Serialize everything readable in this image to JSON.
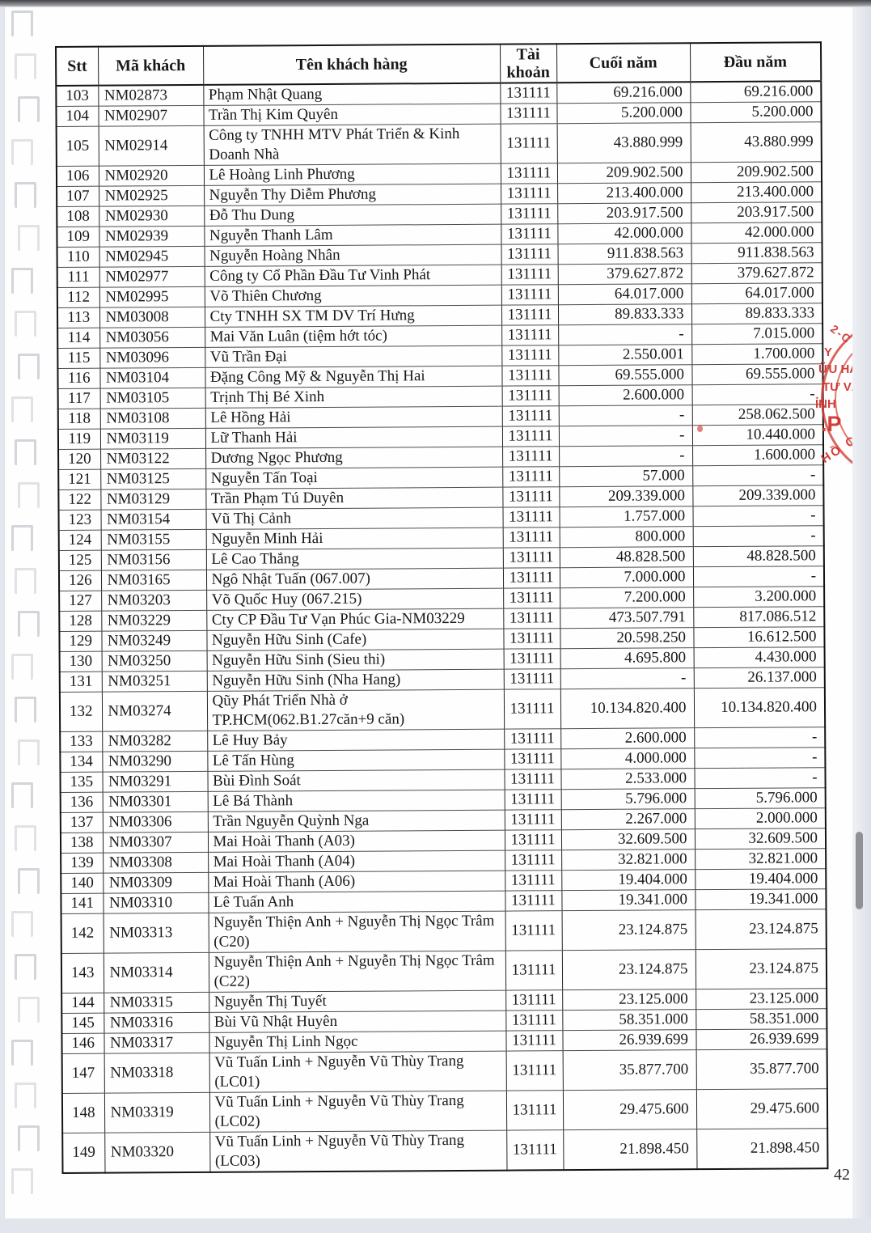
{
  "document": {
    "page_number": "42",
    "table": {
      "columns": [
        {
          "key": "stt",
          "label": "Stt"
        },
        {
          "key": "ma_khach",
          "label": "Mã khách"
        },
        {
          "key": "ten_khach_hang",
          "label": "Tên khách hàng"
        },
        {
          "key": "tai_khoan",
          "label": "Tài khoản"
        },
        {
          "key": "cuoi_nam",
          "label": "Cuối năm"
        },
        {
          "key": "dau_nam",
          "label": "Đầu năm"
        }
      ],
      "rows": [
        [
          "103",
          "NM02873",
          "Phạm Nhật Quang",
          "131111",
          "69.216.000",
          "69.216.000"
        ],
        [
          "104",
          "NM02907",
          "Trần Thị Kim Quyên",
          "131111",
          "5.200.000",
          "5.200.000"
        ],
        [
          "105",
          "NM02914",
          "Công ty TNHH MTV Phát Triển & Kinh Doanh Nhà",
          "131111",
          "43.880.999",
          "43.880.999"
        ],
        [
          "106",
          "NM02920",
          "Lê Hoàng Linh Phương",
          "131111",
          "209.902.500",
          "209.902.500"
        ],
        [
          "107",
          "NM02925",
          "Nguyễn Thy Diễm Phương",
          "131111",
          "213.400.000",
          "213.400.000"
        ],
        [
          "108",
          "NM02930",
          "Đỗ Thu Dung",
          "131111",
          "203.917.500",
          "203.917.500"
        ],
        [
          "109",
          "NM02939",
          "Nguyễn Thanh Lâm",
          "131111",
          "42.000.000",
          "42.000.000"
        ],
        [
          "110",
          "NM02945",
          "Nguyễn Hoàng Nhân",
          "131111",
          "911.838.563",
          "911.838.563"
        ],
        [
          "111",
          "NM02977",
          "Công ty Cổ Phần Đầu Tư Vinh Phát",
          "131111",
          "379.627.872",
          "379.627.872"
        ],
        [
          "112",
          "NM02995",
          "Võ Thiên Chương",
          "131111",
          "64.017.000",
          "64.017.000"
        ],
        [
          "113",
          "NM03008",
          "Cty TNHH SX TM DV Trí Hưng",
          "131111",
          "89.833.333",
          "89.833.333"
        ],
        [
          "114",
          "NM03056",
          "Mai Văn Luân (tiệm hớt tóc)",
          "131111",
          "-",
          "7.015.000"
        ],
        [
          "115",
          "NM03096",
          "Vũ Trần Đại",
          "131111",
          "2.550.001",
          "1.700.000"
        ],
        [
          "116",
          "NM03104",
          "Đặng Công Mỹ & Nguyễn Thị Hai",
          "131111",
          "69.555.000",
          "69.555.000"
        ],
        [
          "117",
          "NM03105",
          "Trịnh Thị Bé Xinh",
          "131111",
          "2.600.000",
          "-"
        ],
        [
          "118",
          "NM03108",
          "Lê Hồng Hải",
          "131111",
          "-",
          "258.062.500"
        ],
        [
          "119",
          "NM03119",
          "Lữ Thanh Hải",
          "131111",
          "-",
          "10.440.000"
        ],
        [
          "120",
          "NM03122",
          "Dương Ngọc Phương",
          "131111",
          "-",
          "1.600.000"
        ],
        [
          "121",
          "NM03125",
          "Nguyễn Tấn Toại",
          "131111",
          "57.000",
          "-"
        ],
        [
          "122",
          "NM03129",
          "Trần Phạm Tú Duyên",
          "131111",
          "209.339.000",
          "209.339.000"
        ],
        [
          "123",
          "NM03154",
          "Vũ Thị Cảnh",
          "131111",
          "1.757.000",
          "-"
        ],
        [
          "124",
          "NM03155",
          "Nguyễn Minh Hải",
          "131111",
          "800.000",
          "-"
        ],
        [
          "125",
          "NM03156",
          "Lê Cao Thắng",
          "131111",
          "48.828.500",
          "48.828.500"
        ],
        [
          "126",
          "NM03165",
          "Ngô Nhật Tuấn (067.007)",
          "131111",
          "7.000.000",
          "-"
        ],
        [
          "127",
          "NM03203",
          "Võ Quốc Huy (067.215)",
          "131111",
          "7.200.000",
          "3.200.000"
        ],
        [
          "128",
          "NM03229",
          "Cty CP Đầu Tư Vạn Phúc Gia-NM03229",
          "131111",
          "473.507.791",
          "817.086.512"
        ],
        [
          "129",
          "NM03249",
          "Nguyễn Hữu Sinh (Cafe)",
          "131111",
          "20.598.250",
          "16.612.500"
        ],
        [
          "130",
          "NM03250",
          "Nguyễn Hữu Sinh (Sieu thi)",
          "131111",
          "4.695.800",
          "4.430.000"
        ],
        [
          "131",
          "NM03251",
          "Nguyễn Hữu Sinh (Nha Hang)",
          "131111",
          "-",
          "26.137.000"
        ],
        [
          "132",
          "NM03274",
          "Qũy Phát Triển Nhà ở TP.HCM(062.B1.27căn+9 căn)",
          "131111",
          "10.134.820.400",
          "10.134.820.400"
        ],
        [
          "133",
          "NM03282",
          "Lê Huy Bảy",
          "131111",
          "2.600.000",
          "-"
        ],
        [
          "134",
          "NM03290",
          "Lê Tấn Hùng",
          "131111",
          "4.000.000",
          "-"
        ],
        [
          "135",
          "NM03291",
          "Bùi Đình Soát",
          "131111",
          "2.533.000",
          "-"
        ],
        [
          "136",
          "NM03301",
          "Lê Bá Thành",
          "131111",
          "5.796.000",
          "5.796.000"
        ],
        [
          "137",
          "NM03306",
          "Trần Nguyễn Quỳnh Nga",
          "131111",
          "2.267.000",
          "2.000.000"
        ],
        [
          "138",
          "NM03307",
          "Mai Hoài Thanh (A03)",
          "131111",
          "32.609.500",
          "32.609.500"
        ],
        [
          "139",
          "NM03308",
          "Mai Hoài Thanh (A04)",
          "131111",
          "32.821.000",
          "32.821.000"
        ],
        [
          "140",
          "NM03309",
          "Mai Hoài Thanh (A06)",
          "131111",
          "19.404.000",
          "19.404.000"
        ],
        [
          "141",
          "NM03310",
          "Lê Tuấn Anh",
          "131111",
          "19.341.000",
          "19.341.000"
        ],
        [
          "142",
          "NM03313",
          "Nguyễn Thiện Anh + Nguyễn Thị Ngọc Trâm (C20)",
          "131111",
          "23.124.875",
          "23.124.875"
        ],
        [
          "143",
          "NM03314",
          "Nguyễn Thiện Anh + Nguyễn Thị Ngọc Trâm (C22)",
          "131111",
          "23.124.875",
          "23.124.875"
        ],
        [
          "144",
          "NM03315",
          "Nguyễn Thị Tuyết",
          "131111",
          "23.125.000",
          "23.125.000"
        ],
        [
          "145",
          "NM03316",
          "Bùi Vũ Nhật Huyên",
          "131111",
          "58.351.000",
          "58.351.000"
        ],
        [
          "146",
          "NM03317",
          "Nguyễn Thị Linh Ngọc",
          "131111",
          "26.939.699",
          "26.939.699"
        ],
        [
          "147",
          "NM03318",
          "Vũ Tuấn Linh + Nguyễn Vũ Thùy Trang (LC01)",
          "131111",
          "35.877.700",
          "35.877.700"
        ],
        [
          "148",
          "NM03319",
          "Vũ Tuấn Linh + Nguyễn Vũ Thùy Trang (LC02)",
          "131111",
          "29.475.600",
          "29.475.600"
        ],
        [
          "149",
          "NM03320",
          "Vũ Tuấn Linh + Nguyễn Vũ Thùy Trang (LC03)",
          "131111",
          "21.898.450",
          "21.898.450"
        ]
      ]
    },
    "stamp": {
      "color": "#d4413a",
      "fragments": {
        "arc_top": "2-C",
        "line1": "Y",
        "line2": "ỮU HẠN",
        "line3": "TƯ VẤN",
        "line4": "ỈNH",
        "line5": ".P",
        "arc_bottom": "HỒ C"
      }
    }
  }
}
